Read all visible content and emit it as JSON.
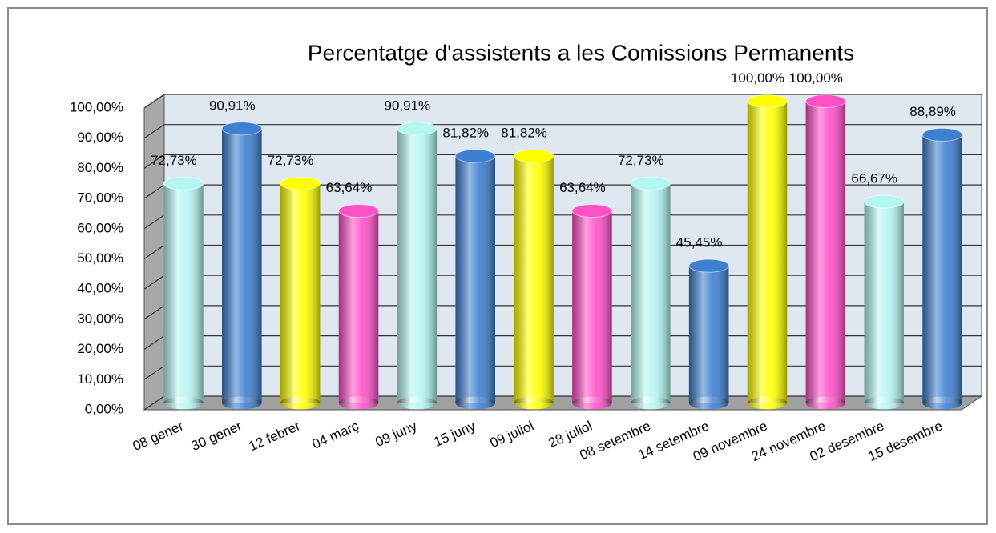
{
  "chart_data": {
    "type": "bar3d",
    "title": "Percentatge d'assistents a les Comissions Permanents",
    "categories": [
      "08 gener",
      "30 gener",
      "12 febrer",
      "04 març",
      "09 juny",
      "15 juny",
      "09 juliol",
      "28 juliol",
      "08 setembre",
      "14 setembre",
      "09 novembre",
      "24 novembre",
      "02 desembre",
      "15 desembre"
    ],
    "values": [
      72.73,
      90.91,
      72.73,
      63.64,
      90.91,
      81.82,
      81.82,
      63.64,
      72.73,
      45.45,
      100,
      100,
      66.67,
      88.89
    ],
    "value_labels": [
      "72,73%",
      "90,91%",
      "72,73%",
      "63,64%",
      "90,91%",
      "81,82%",
      "81,82%",
      "63,64%",
      "72,73%",
      "45,45%",
      "100,00%",
      "100,00%",
      "66,67%",
      "88,89%"
    ],
    "colors": [
      "#b4f6f2",
      "#3d7fd0",
      "#ffff00",
      "#ff50c8",
      "#b4f6f2",
      "#3d7fd0",
      "#ffff00",
      "#ff50c8",
      "#b4f6f2",
      "#3d7fd0",
      "#ffff00",
      "#ff50c8",
      "#b4f6f2",
      "#3d7fd0"
    ],
    "ylim": [
      0,
      100
    ],
    "yticks": [
      {
        "value": 0,
        "label": "0,00%"
      },
      {
        "value": 10,
        "label": "10,00%"
      },
      {
        "value": 20,
        "label": "20,00%"
      },
      {
        "value": 30,
        "label": "30,00%"
      },
      {
        "value": 40,
        "label": "40,00%"
      },
      {
        "value": 50,
        "label": "50,00%"
      },
      {
        "value": 60,
        "label": "60,00%"
      },
      {
        "value": 70,
        "label": "70,00%"
      },
      {
        "value": 80,
        "label": "80,00%"
      },
      {
        "value": 90,
        "label": "90,00%"
      },
      {
        "value": 100,
        "label": "100,00%"
      }
    ],
    "grid": true
  }
}
